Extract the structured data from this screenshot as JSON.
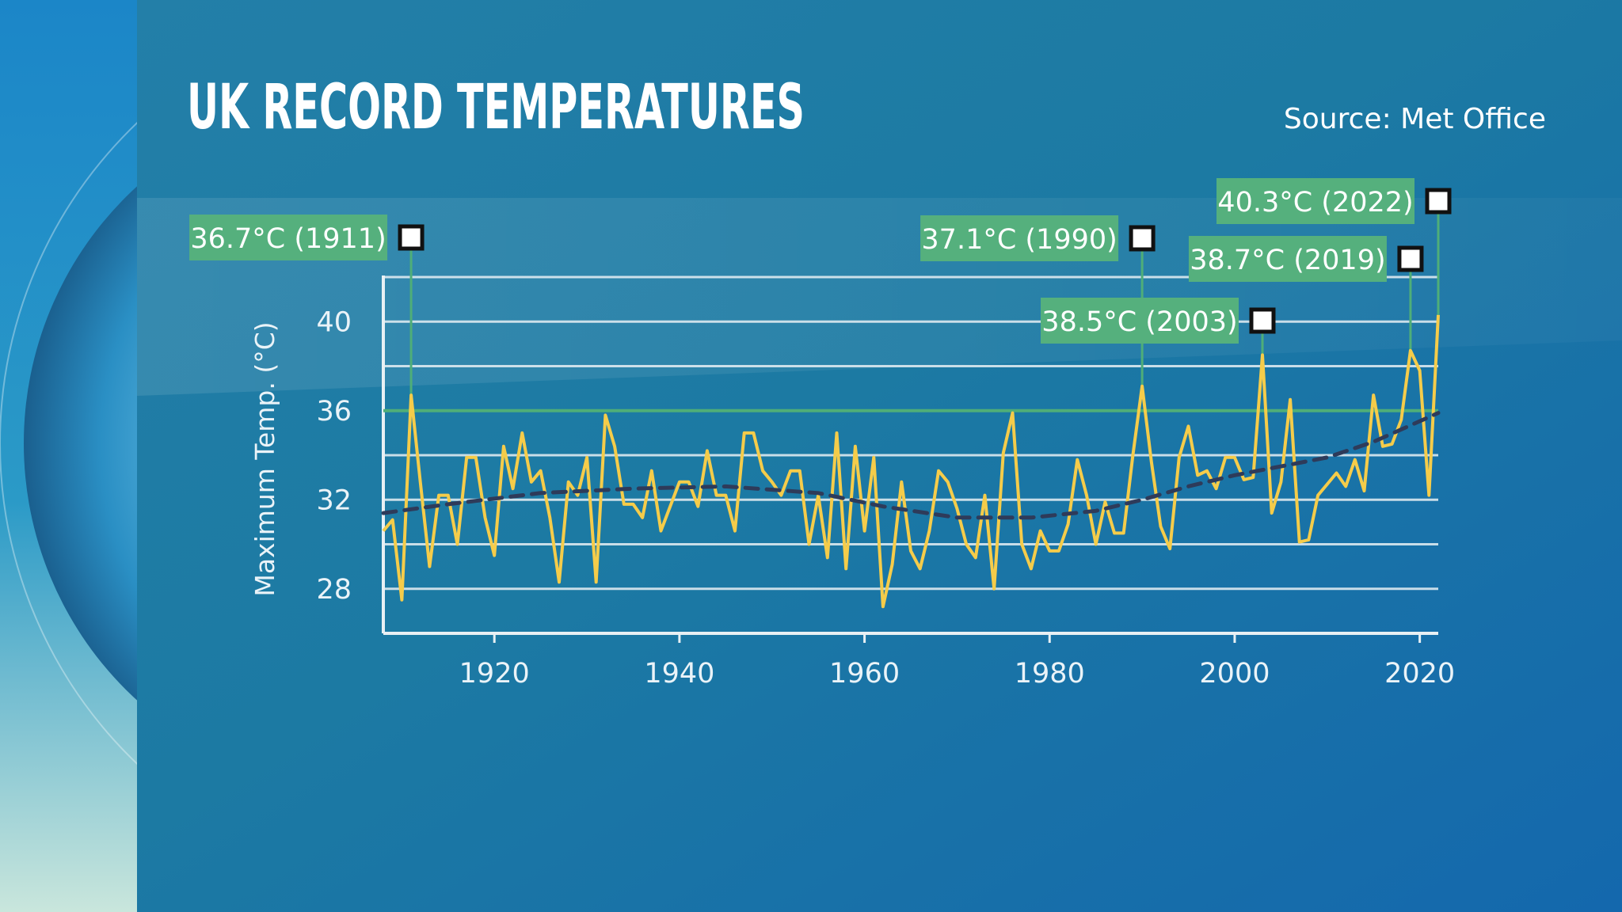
{
  "header": {
    "title": "UK RECORD TEMPERATURES",
    "source": "Source: Met Office"
  },
  "colors": {
    "panel": "#1f7aa2",
    "data_line": "#f5cc4a",
    "trend_line": "#2e3b5a",
    "gridline": "#e8f0f4",
    "callout_bg": "#55b07d",
    "callout_stem": "#4fae78",
    "record_line": "#4fae78"
  },
  "chart_data": {
    "type": "line",
    "title": "UK RECORD TEMPERATURES",
    "ylabel": "Maximum Temp. (°C)",
    "xlabel": "",
    "xlim": [
      1908,
      2022
    ],
    "ylim": [
      26,
      42
    ],
    "x_ticks": [
      1920,
      1940,
      1960,
      1980,
      2000,
      2020
    ],
    "y_ticks": [
      28,
      32,
      36,
      40
    ],
    "gridlines": [
      28,
      30,
      32,
      34,
      36,
      38,
      40,
      42
    ],
    "grid": true,
    "highlight_line": 36,
    "series": [
      {
        "style": "solid",
        "x": [
          1908,
          1909,
          1910,
          1911,
          1912,
          1913,
          1914,
          1915,
          1916,
          1917,
          1918,
          1919,
          1920,
          1921,
          1922,
          1923,
          1924,
          1925,
          1926,
          1927,
          1928,
          1929,
          1930,
          1931,
          1932,
          1933,
          1934,
          1935,
          1936,
          1937,
          1938,
          1939,
          1940,
          1941,
          1942,
          1943,
          1944,
          1945,
          1946,
          1947,
          1948,
          1949,
          1950,
          1951,
          1952,
          1953,
          1954,
          1955,
          1956,
          1957,
          1958,
          1959,
          1960,
          1961,
          1962,
          1963,
          1964,
          1965,
          1966,
          1967,
          1968,
          1969,
          1970,
          1971,
          1972,
          1973,
          1974,
          1975,
          1976,
          1977,
          1978,
          1979,
          1980,
          1981,
          1982,
          1983,
          1984,
          1985,
          1986,
          1987,
          1988,
          1989,
          1990,
          1991,
          1992,
          1993,
          1994,
          1995,
          1996,
          1997,
          1998,
          1999,
          2000,
          2001,
          2002,
          2003,
          2004,
          2005,
          2006,
          2007,
          2008,
          2009,
          2010,
          2011,
          2012,
          2013,
          2014,
          2015,
          2016,
          2017,
          2018,
          2019,
          2020,
          2021,
          2022
        ],
        "y": [
          30.6,
          31.1,
          27.5,
          36.7,
          32.8,
          29.0,
          32.2,
          32.2,
          30.0,
          33.9,
          33.9,
          31.2,
          29.5,
          34.4,
          32.5,
          35.0,
          32.8,
          33.3,
          31.2,
          28.3,
          32.8,
          32.2,
          33.9,
          28.3,
          35.8,
          34.4,
          31.8,
          31.8,
          31.2,
          33.3,
          30.6,
          31.7,
          32.8,
          32.8,
          31.7,
          34.2,
          32.2,
          32.2,
          30.6,
          35.0,
          35.0,
          33.3,
          32.8,
          32.2,
          33.3,
          33.3,
          30.0,
          32.2,
          29.4,
          35.0,
          28.9,
          34.4,
          30.6,
          33.9,
          27.2,
          29.1,
          32.8,
          29.7,
          28.9,
          30.6,
          33.3,
          32.8,
          31.6,
          30.0,
          29.4,
          32.2,
          28.0,
          34.1,
          35.9,
          30.0,
          28.9,
          30.6,
          29.7,
          29.7,
          30.9,
          33.8,
          32.2,
          30.0,
          31.9,
          30.5,
          30.5,
          34.0,
          37.1,
          33.7,
          30.8,
          29.8,
          33.9,
          35.3,
          33.1,
          33.3,
          32.5,
          33.9,
          33.9,
          32.9,
          33.0,
          38.5,
          31.4,
          32.8,
          36.5,
          30.1,
          30.2,
          32.2,
          32.7,
          33.2,
          32.6,
          33.8,
          32.4,
          36.7,
          34.4,
          34.5,
          35.6,
          38.7,
          37.8,
          32.2,
          40.3
        ]
      },
      {
        "style": "dashed",
        "x": [
          1908,
          1915,
          1925,
          1935,
          1945,
          1955,
          1962,
          1970,
          1978,
          1985,
          1990,
          1995,
          2000,
          2005,
          2010,
          2015,
          2022
        ],
        "y": [
          31.4,
          31.8,
          32.3,
          32.5,
          32.6,
          32.3,
          31.7,
          31.2,
          31.2,
          31.5,
          32.0,
          32.6,
          33.1,
          33.5,
          33.9,
          34.6,
          35.9
        ]
      }
    ],
    "annotations": [
      {
        "label": "36.7°C (1911)",
        "x": 1911,
        "y": 36.7,
        "side": "left"
      },
      {
        "label": "37.1°C (1990)",
        "x": 1990,
        "y": 37.1,
        "side": "left"
      },
      {
        "label": "38.5°C (2003)",
        "x": 2003,
        "y": 38.5,
        "side": "left"
      },
      {
        "label": "38.7°C (2019)",
        "x": 2019,
        "y": 38.7,
        "side": "left"
      },
      {
        "label": "40.3°C (2022)",
        "x": 2022,
        "y": 40.3,
        "side": "left"
      }
    ]
  }
}
